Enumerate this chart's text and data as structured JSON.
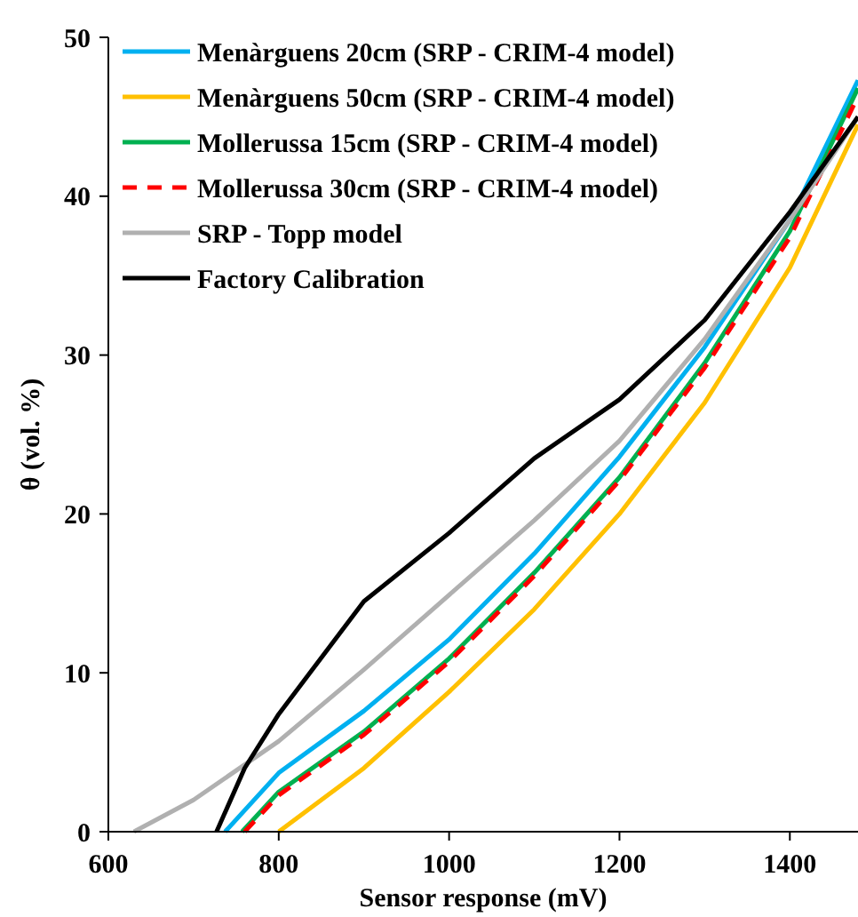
{
  "chart_data": {
    "type": "line",
    "xlabel": "Sensor response (mV)",
    "ylabel": "θ (vol. %)",
    "xlim": [
      600,
      1480
    ],
    "ylim": [
      0,
      50
    ],
    "xticks": [
      600,
      800,
      1000,
      1200,
      1400
    ],
    "yticks": [
      0,
      10,
      20,
      30,
      40,
      50
    ],
    "grid": false,
    "legend": "top left",
    "marker": "none",
    "series": [
      {
        "name": "Menàrguens 20cm (SRP - CRIM-4 model)",
        "color": "#00b0f0",
        "x": [
          737,
          800,
          900,
          1000,
          1100,
          1200,
          1300,
          1400,
          1480
        ],
        "values": [
          0,
          3.7,
          7.6,
          12.1,
          17.5,
          23.6,
          30.5,
          38.5,
          47.3
        ]
      },
      {
        "name": "Menàrguens 50cm (SRP - CRIM-4 model)",
        "color": "#ffc000",
        "x": [
          800,
          900,
          1000,
          1100,
          1200,
          1300,
          1400,
          1480
        ],
        "values": [
          0,
          4,
          8.8,
          14,
          20,
          27,
          35.5,
          44.5
        ]
      },
      {
        "name": "Mollerussa 15cm (SRP - CRIM-4 model)",
        "color": "#00b050",
        "x": [
          757,
          800,
          900,
          1000,
          1100,
          1200,
          1300,
          1400,
          1480
        ],
        "values": [
          0,
          2.5,
          6.3,
          10.9,
          16.3,
          22.3,
          29.5,
          37.8,
          46.8
        ]
      },
      {
        "name": "Mollerussa 30cm (SRP - CRIM-4 model)",
        "color": "#ff0000",
        "line_style": "dashed",
        "x": [
          760,
          800,
          900,
          1000,
          1100,
          1200,
          1300,
          1400,
          1480
        ],
        "values": [
          0,
          2.3,
          6.1,
          10.7,
          16.1,
          22.1,
          29.2,
          37.4,
          46.3
        ]
      },
      {
        "name": "SRP - Topp model",
        "color": "#b0b0b0",
        "x": [
          630,
          700,
          800,
          900,
          1000,
          1100,
          1200,
          1300,
          1400,
          1480
        ],
        "values": [
          0,
          2,
          5.7,
          10.2,
          14.9,
          19.6,
          24.6,
          31,
          38.5,
          45
        ]
      },
      {
        "name": "Factory Calibration",
        "color": "#000000",
        "x": [
          727,
          760,
          800,
          900,
          1000,
          1100,
          1200,
          1300,
          1400,
          1480
        ],
        "values": [
          0,
          4,
          7.4,
          14.5,
          18.8,
          23.5,
          27.2,
          32.2,
          39,
          45
        ]
      }
    ]
  }
}
